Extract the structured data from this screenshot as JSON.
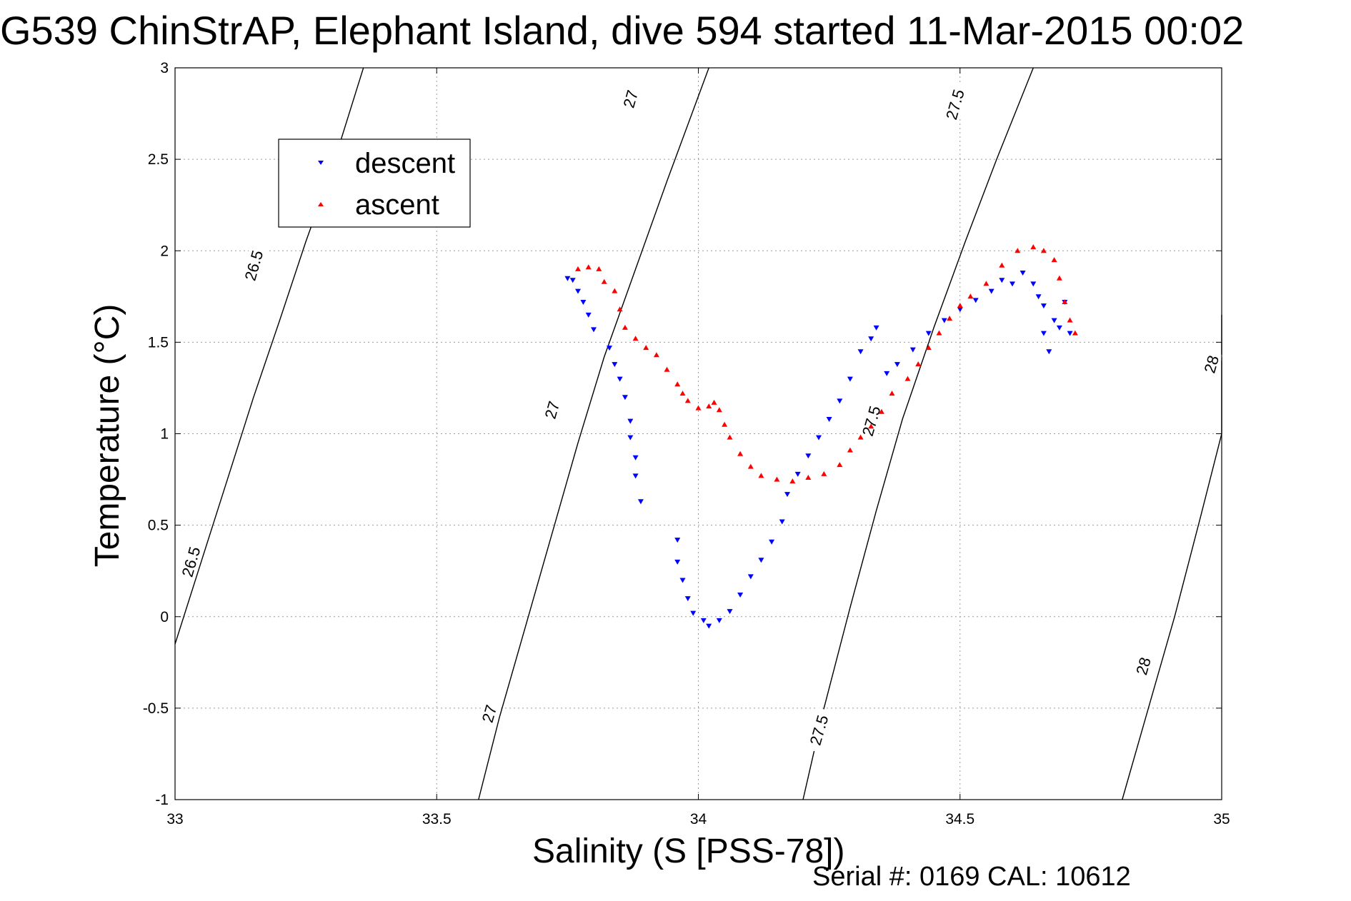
{
  "chart_data": {
    "type": "scatter",
    "title": "G539 ChinStrAP, Elephant Island, dive 594 started 11-Mar-2015 00:02",
    "xlabel": "Salinity (S [PSS-78])",
    "ylabel": "Temperature (°C)",
    "footer": "Serial #: 0169 CAL: 10612",
    "xlim": [
      33,
      35
    ],
    "ylim": [
      -1,
      3
    ],
    "x_ticks": [
      "33",
      "33.5",
      "34",
      "34.5",
      "35"
    ],
    "y_ticks": [
      "-1",
      "-0.5",
      "0",
      "0.5",
      "1",
      "1.5",
      "2",
      "2.5",
      "3"
    ],
    "grid": true,
    "legend_position": "top-left",
    "series": [
      {
        "name": "descent",
        "color": "#0000ff",
        "marker": "triangle-down",
        "points": [
          [
            33.75,
            1.85
          ],
          [
            33.76,
            1.84
          ],
          [
            33.77,
            1.78
          ],
          [
            33.78,
            1.72
          ],
          [
            33.79,
            1.65
          ],
          [
            33.8,
            1.57
          ],
          [
            33.83,
            1.47
          ],
          [
            33.84,
            1.38
          ],
          [
            33.85,
            1.3
          ],
          [
            33.86,
            1.2
          ],
          [
            33.87,
            1.07
          ],
          [
            33.87,
            0.98
          ],
          [
            33.88,
            0.87
          ],
          [
            33.88,
            0.77
          ],
          [
            33.89,
            0.63
          ],
          [
            33.96,
            0.42
          ],
          [
            33.96,
            0.3
          ],
          [
            33.97,
            0.2
          ],
          [
            33.98,
            0.1
          ],
          [
            33.99,
            0.02
          ],
          [
            34.01,
            -0.02
          ],
          [
            34.02,
            -0.05
          ],
          [
            34.04,
            -0.02
          ],
          [
            34.06,
            0.03
          ],
          [
            34.08,
            0.12
          ],
          [
            34.1,
            0.22
          ],
          [
            34.12,
            0.31
          ],
          [
            34.14,
            0.41
          ],
          [
            34.16,
            0.52
          ],
          [
            34.17,
            0.67
          ],
          [
            34.19,
            0.78
          ],
          [
            34.21,
            0.88
          ],
          [
            34.23,
            0.98
          ],
          [
            34.25,
            1.08
          ],
          [
            34.27,
            1.18
          ],
          [
            34.29,
            1.3
          ],
          [
            34.31,
            1.45
          ],
          [
            34.33,
            1.52
          ],
          [
            34.34,
            1.58
          ],
          [
            34.36,
            1.33
          ],
          [
            34.38,
            1.38
          ],
          [
            34.41,
            1.46
          ],
          [
            34.44,
            1.55
          ],
          [
            34.47,
            1.62
          ],
          [
            34.5,
            1.68
          ],
          [
            34.53,
            1.73
          ],
          [
            34.56,
            1.78
          ],
          [
            34.58,
            1.84
          ],
          [
            34.6,
            1.82
          ],
          [
            34.62,
            1.88
          ],
          [
            34.64,
            1.82
          ],
          [
            34.65,
            1.75
          ],
          [
            34.66,
            1.7
          ],
          [
            34.66,
            1.55
          ],
          [
            34.67,
            1.45
          ],
          [
            34.68,
            1.62
          ],
          [
            34.69,
            1.58
          ],
          [
            34.7,
            1.72
          ],
          [
            34.71,
            1.55
          ]
        ]
      },
      {
        "name": "ascent",
        "color": "#ff0000",
        "marker": "triangle-up",
        "points": [
          [
            33.77,
            1.9
          ],
          [
            33.79,
            1.91
          ],
          [
            33.81,
            1.9
          ],
          [
            33.82,
            1.83
          ],
          [
            33.84,
            1.78
          ],
          [
            33.85,
            1.68
          ],
          [
            33.86,
            1.58
          ],
          [
            33.88,
            1.52
          ],
          [
            33.9,
            1.47
          ],
          [
            33.92,
            1.43
          ],
          [
            33.94,
            1.35
          ],
          [
            33.96,
            1.27
          ],
          [
            33.97,
            1.22
          ],
          [
            33.98,
            1.18
          ],
          [
            34.0,
            1.14
          ],
          [
            34.02,
            1.15
          ],
          [
            34.03,
            1.17
          ],
          [
            34.04,
            1.13
          ],
          [
            34.05,
            1.05
          ],
          [
            34.06,
            0.98
          ],
          [
            34.08,
            0.89
          ],
          [
            34.1,
            0.82
          ],
          [
            34.12,
            0.77
          ],
          [
            34.15,
            0.75
          ],
          [
            34.18,
            0.74
          ],
          [
            34.21,
            0.76
          ],
          [
            34.24,
            0.78
          ],
          [
            34.27,
            0.83
          ],
          [
            34.29,
            0.91
          ],
          [
            34.31,
            0.98
          ],
          [
            34.33,
            1.04
          ],
          [
            34.35,
            1.12
          ],
          [
            34.37,
            1.22
          ],
          [
            34.4,
            1.3
          ],
          [
            34.42,
            1.38
          ],
          [
            34.44,
            1.47
          ],
          [
            34.46,
            1.55
          ],
          [
            34.48,
            1.63
          ],
          [
            34.5,
            1.7
          ],
          [
            34.52,
            1.75
          ],
          [
            34.55,
            1.82
          ],
          [
            34.58,
            1.92
          ],
          [
            34.61,
            2.0
          ],
          [
            34.64,
            2.02
          ],
          [
            34.66,
            2.0
          ],
          [
            34.68,
            1.95
          ],
          [
            34.69,
            1.85
          ],
          [
            34.7,
            1.72
          ],
          [
            34.71,
            1.62
          ],
          [
            34.72,
            1.55
          ]
        ]
      }
    ],
    "isopycnals": [
      {
        "label": "26.5",
        "points": [
          [
            33.0,
            -0.15
          ],
          [
            33.05,
            0.3
          ],
          [
            33.1,
            0.75
          ],
          [
            33.15,
            1.2
          ],
          [
            33.2,
            1.62
          ],
          [
            33.25,
            2.05
          ],
          [
            33.3,
            2.45
          ],
          [
            33.36,
            3.0
          ]
        ]
      },
      {
        "label": "27",
        "points": [
          [
            33.58,
            -1.0
          ],
          [
            33.62,
            -0.55
          ],
          [
            33.67,
            -0.05
          ],
          [
            33.72,
            0.45
          ],
          [
            33.77,
            0.95
          ],
          [
            33.82,
            1.42
          ],
          [
            33.88,
            1.9
          ],
          [
            33.94,
            2.38
          ],
          [
            34.02,
            3.0
          ]
        ]
      },
      {
        "label": "27.5",
        "points": [
          [
            34.2,
            -1.0
          ],
          [
            34.24,
            -0.5
          ],
          [
            34.29,
            0.05
          ],
          [
            34.34,
            0.58
          ],
          [
            34.39,
            1.08
          ],
          [
            34.45,
            1.58
          ],
          [
            34.51,
            2.05
          ],
          [
            34.57,
            2.5
          ],
          [
            34.64,
            3.0
          ]
        ]
      },
      {
        "label": "28",
        "points": [
          [
            34.81,
            -1.0
          ],
          [
            34.86,
            -0.5
          ],
          [
            34.91,
            0.0
          ],
          [
            34.96,
            0.55
          ],
          [
            35.0,
            1.0
          ],
          [
            35.0,
            1.65
          ]
        ]
      }
    ],
    "contour_labels": [
      {
        "text": "26.5",
        "x": 33.15,
        "y": 1.92
      },
      {
        "text": "26.5",
        "x": 33.03,
        "y": 0.3
      },
      {
        "text": "27",
        "x": 33.87,
        "y": 2.83
      },
      {
        "text": "27",
        "x": 33.72,
        "y": 1.13
      },
      {
        "text": "27",
        "x": 33.6,
        "y": -0.53
      },
      {
        "text": "27.5",
        "x": 34.49,
        "y": 2.8
      },
      {
        "text": "27.5",
        "x": 34.33,
        "y": 1.07
      },
      {
        "text": "27.5",
        "x": 34.23,
        "y": -0.62
      },
      {
        "text": "28",
        "x": 34.98,
        "y": 1.38
      },
      {
        "text": "28",
        "x": 34.85,
        "y": -0.27
      }
    ]
  }
}
